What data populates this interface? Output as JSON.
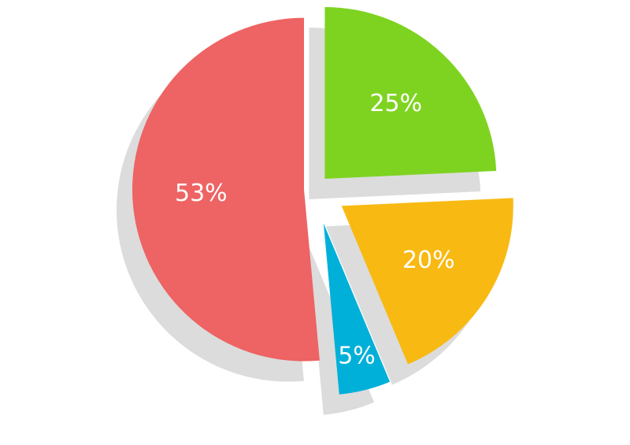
{
  "chart_data": {
    "type": "pie",
    "categories": [
      null,
      null,
      null,
      null
    ],
    "values": [
      25,
      20,
      5,
      53
    ],
    "value_labels": [
      "25%",
      "20%",
      "5%",
      "53%"
    ],
    "colors": [
      "#7ed321",
      "#f8b912",
      "#00b0d8",
      "#ee6363"
    ]
  }
}
